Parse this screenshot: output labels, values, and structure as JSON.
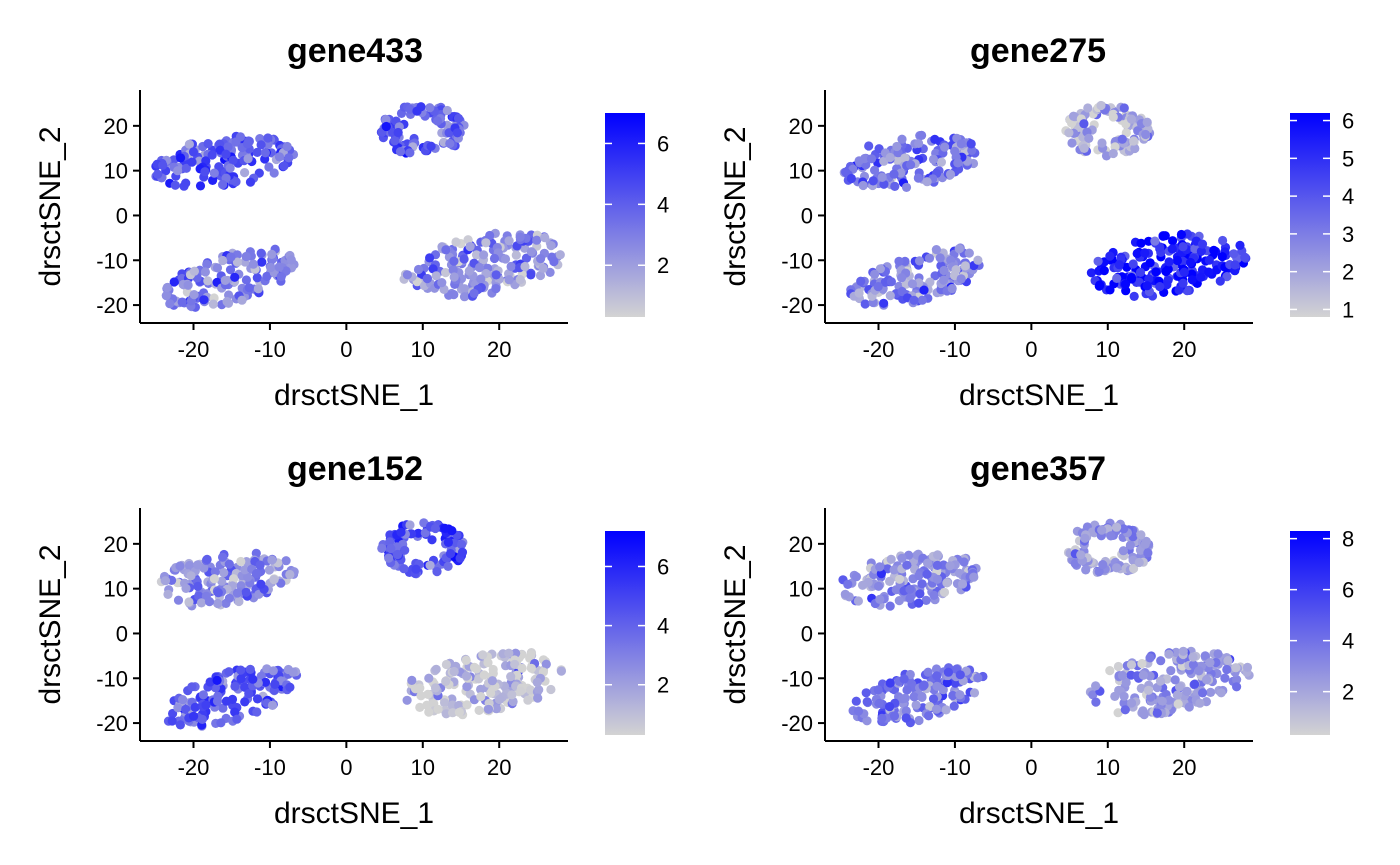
{
  "chart_data": [
    {
      "type": "scatter",
      "title": "gene433",
      "xlabel": "drsctSNE_1",
      "ylabel": "drsctSNE_2",
      "xlim": [
        -27,
        29
      ],
      "ylim": [
        -24,
        28
      ],
      "xticks": [
        -20,
        -10,
        0,
        10,
        20
      ],
      "yticks": [
        -20,
        -10,
        0,
        10,
        20
      ],
      "grid": false,
      "color_scale": {
        "low": "#d3d3d3",
        "high": "#0000ff",
        "range": [
          0.3,
          7.0
        ],
        "ticks": [
          2,
          4,
          6
        ]
      },
      "clusters": [
        {
          "center": [
            -16,
            12
          ],
          "mean_expression": 4.2
        },
        {
          "center": [
            10,
            19
          ],
          "mean_expression": 4.0
        },
        {
          "center": [
            -15,
            -14
          ],
          "mean_expression": 3.0
        },
        {
          "center": [
            18,
            -11
          ],
          "mean_expression": 2.6
        }
      ]
    },
    {
      "type": "scatter",
      "title": "gene275",
      "xlabel": "drsctSNE_1",
      "ylabel": "drsctSNE_2",
      "xlim": [
        -27,
        29
      ],
      "ylim": [
        -24,
        28
      ],
      "xticks": [
        -20,
        -10,
        0,
        10,
        20
      ],
      "yticks": [
        -20,
        -10,
        0,
        10,
        20
      ],
      "grid": false,
      "color_scale": {
        "low": "#d3d3d3",
        "high": "#0000ff",
        "range": [
          0.8,
          6.2
        ],
        "ticks": [
          1,
          2,
          3,
          4,
          5,
          6
        ]
      },
      "clusters": [
        {
          "center": [
            -16,
            12
          ],
          "mean_expression": 3.1
        },
        {
          "center": [
            10,
            19
          ],
          "mean_expression": 1.6
        },
        {
          "center": [
            -15,
            -14
          ],
          "mean_expression": 2.8
        },
        {
          "center": [
            18,
            -11
          ],
          "mean_expression": 5.4
        }
      ]
    },
    {
      "type": "scatter",
      "title": "gene152",
      "xlabel": "drsctSNE_1",
      "ylabel": "drsctSNE_2",
      "xlim": [
        -27,
        29
      ],
      "ylim": [
        -24,
        28
      ],
      "xticks": [
        -20,
        -10,
        0,
        10,
        20
      ],
      "yticks": [
        -20,
        -10,
        0,
        10,
        20
      ],
      "grid": false,
      "color_scale": {
        "low": "#d3d3d3",
        "high": "#0000ff",
        "range": [
          0.3,
          7.2
        ],
        "ticks": [
          2,
          4,
          6
        ]
      },
      "clusters": [
        {
          "center": [
            -16,
            12
          ],
          "mean_expression": 2.4
        },
        {
          "center": [
            10,
            19
          ],
          "mean_expression": 4.6
        },
        {
          "center": [
            -15,
            -14
          ],
          "mean_expression": 4.2
        },
        {
          "center": [
            18,
            -11
          ],
          "mean_expression": 1.0
        }
      ]
    },
    {
      "type": "scatter",
      "title": "gene357",
      "xlabel": "drsctSNE_1",
      "ylabel": "drsctSNE_2",
      "xlim": [
        -27,
        29
      ],
      "ylim": [
        -24,
        28
      ],
      "xticks": [
        -20,
        -10,
        0,
        10,
        20
      ],
      "yticks": [
        -20,
        -10,
        0,
        10,
        20
      ],
      "grid": false,
      "color_scale": {
        "low": "#d3d3d3",
        "high": "#0000ff",
        "range": [
          0.3,
          8.3
        ],
        "ticks": [
          2,
          4,
          6,
          8
        ]
      },
      "clusters": [
        {
          "center": [
            -16,
            12
          ],
          "mean_expression": 3.0
        },
        {
          "center": [
            10,
            19
          ],
          "mean_expression": 2.5
        },
        {
          "center": [
            -15,
            -14
          ],
          "mean_expression": 3.6
        },
        {
          "center": [
            18,
            -11
          ],
          "mean_expression": 2.6
        }
      ]
    }
  ]
}
